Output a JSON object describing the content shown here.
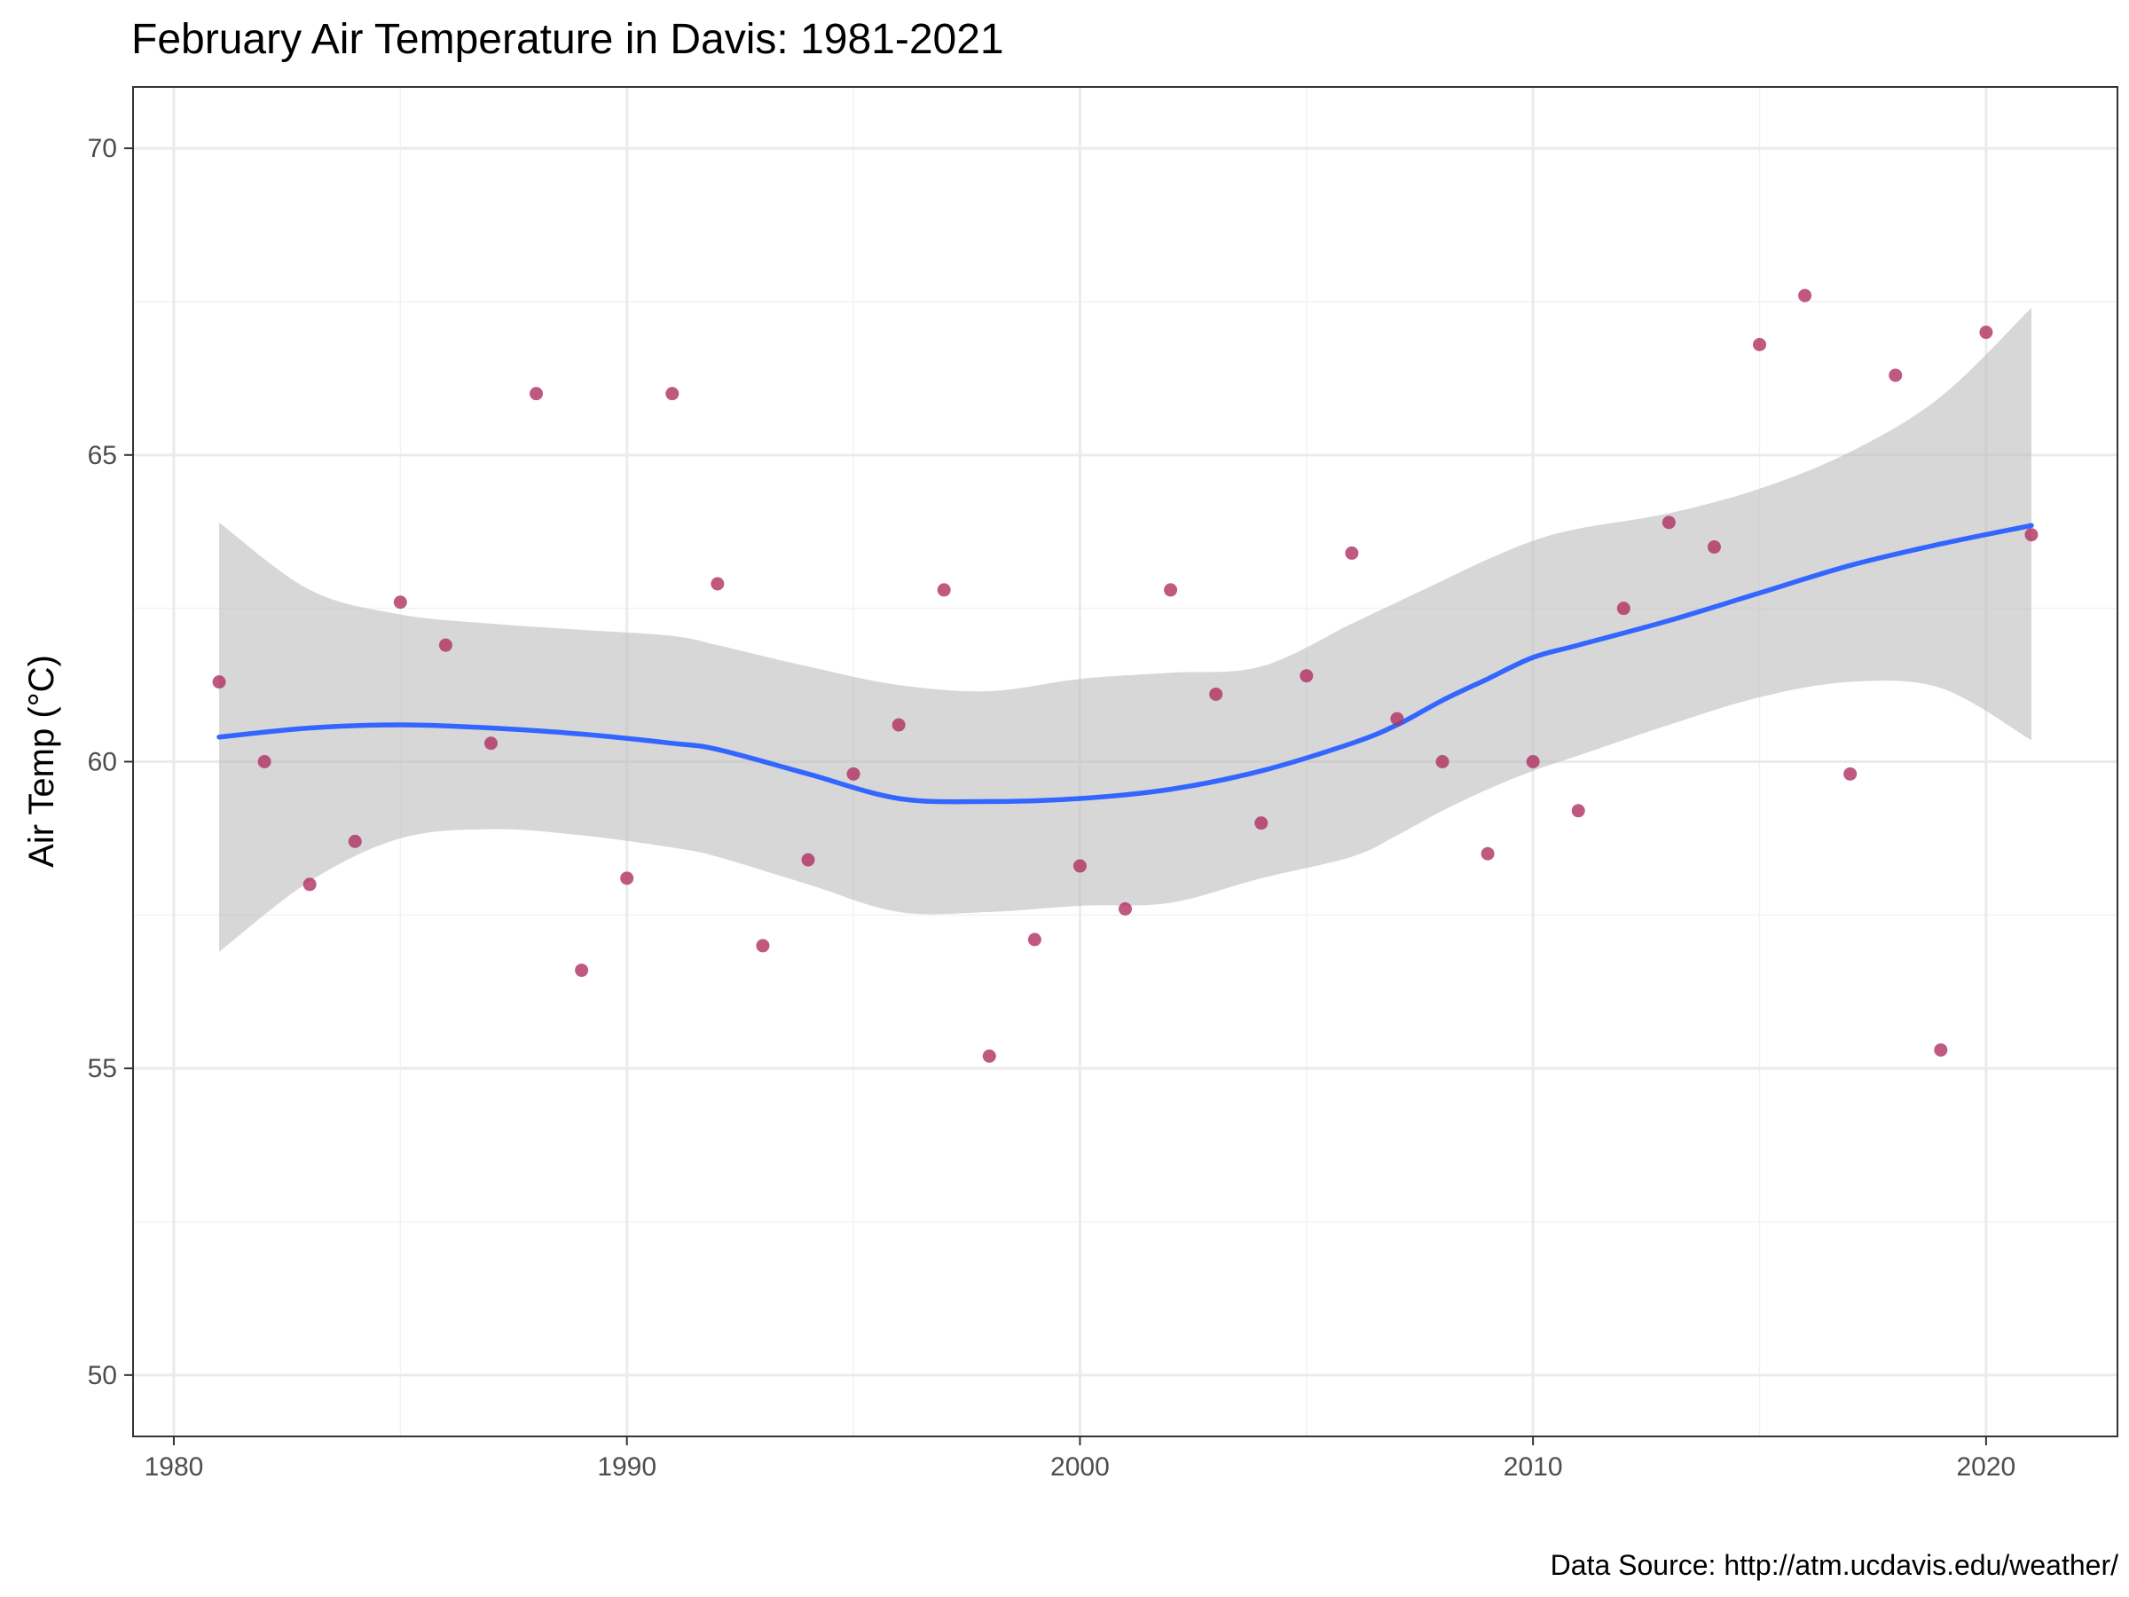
{
  "chart_data": {
    "type": "scatter",
    "title": "February Air Temperature in Davis: 1981-2021",
    "caption": "Data Source: http://atm.ucdavis.edu/weather/",
    "xlabel": "",
    "ylabel": "Air Temp (°C)",
    "xlim": [
      1979.1,
      2022.9
    ],
    "ylim": [
      49,
      71
    ],
    "x_ticks": [
      1980,
      1990,
      2000,
      2010,
      2020
    ],
    "y_ticks": [
      50,
      55,
      60,
      65,
      70
    ],
    "grid": true,
    "point_color": "#b03060",
    "smooth_color": "#3366ff",
    "ribbon_color": "#bebebe",
    "points": {
      "x": [
        1981,
        1982,
        1983,
        1984,
        1985,
        1986,
        1987,
        1988,
        1989,
        1990,
        1991,
        1992,
        1993,
        1994,
        1995,
        1996,
        1997,
        1998,
        1999,
        2000,
        2001,
        2002,
        2003,
        2004,
        2005,
        2006,
        2007,
        2008,
        2009,
        2010,
        2011,
        2012,
        2013,
        2014,
        2015,
        2016,
        2017,
        2018,
        2019,
        2020,
        2021
      ],
      "y": [
        61.3,
        60.0,
        58.0,
        58.7,
        62.6,
        61.9,
        60.3,
        66.0,
        56.6,
        58.1,
        66.0,
        62.9,
        57.0,
        58.4,
        59.8,
        60.6,
        62.8,
        55.2,
        57.1,
        58.3,
        57.6,
        62.8,
        61.1,
        59.0,
        61.4,
        63.4,
        60.7,
        60.0,
        58.5,
        60.0,
        59.2,
        62.5,
        63.9,
        63.5,
        66.8,
        67.6,
        59.8,
        66.3,
        55.3,
        67.0,
        63.7
      ]
    },
    "smooth": {
      "x": [
        1981,
        1983,
        1985,
        1987,
        1989,
        1991,
        1992,
        1994,
        1996,
        1998,
        2000,
        2002,
        2004,
        2006,
        2007,
        2008,
        2009,
        2010,
        2011,
        2013,
        2015,
        2017,
        2019,
        2021
      ],
      "y": [
        60.4,
        60.55,
        60.6,
        60.55,
        60.45,
        60.3,
        60.2,
        59.8,
        59.4,
        59.35,
        59.4,
        59.55,
        59.85,
        60.3,
        60.6,
        61.0,
        61.35,
        61.7,
        61.9,
        62.3,
        62.75,
        63.2,
        63.55,
        63.85
      ],
      "ci_upper": [
        63.9,
        62.8,
        62.4,
        62.25,
        62.15,
        62.05,
        61.9,
        61.55,
        61.25,
        61.15,
        61.35,
        61.45,
        61.55,
        62.25,
        62.6,
        62.95,
        63.3,
        63.6,
        63.8,
        64.05,
        64.45,
        65.05,
        65.95,
        67.4
      ],
      "ci_lower": [
        56.9,
        58.05,
        58.75,
        58.9,
        58.8,
        58.6,
        58.45,
        58.0,
        57.55,
        57.55,
        57.65,
        57.7,
        58.1,
        58.45,
        58.8,
        59.2,
        59.55,
        59.85,
        60.1,
        60.6,
        61.05,
        61.3,
        61.2,
        60.35
      ]
    }
  }
}
